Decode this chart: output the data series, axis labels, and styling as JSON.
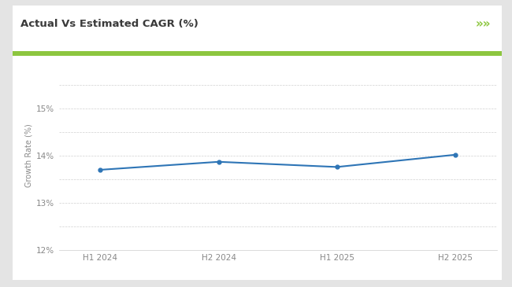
{
  "title": "Actual Vs Estimated CAGR (%)",
  "ylabel": "Growth Rate (%)",
  "x_labels": [
    "H1 2024",
    "H2 2024",
    "H1 2025",
    "H2 2025"
  ],
  "x_values": [
    0,
    1,
    2,
    3
  ],
  "y_values": [
    13.7,
    13.87,
    13.76,
    14.02
  ],
  "line_color": "#2e75b6",
  "line_width": 1.5,
  "ylim": [
    12.0,
    16.0
  ],
  "yticks": [
    12.0,
    12.5,
    13.0,
    13.5,
    14.0,
    14.5,
    15.0,
    15.5
  ],
  "ytick_labels": [
    "12%",
    "",
    "13%",
    "",
    "14%",
    "",
    "15%",
    ""
  ],
  "background_color": "#ffffff",
  "outer_bg": "#e4e4e4",
  "header_bar_color": "#8dc63f",
  "title_color": "#3a3a3a",
  "title_fontsize": 9.5,
  "axis_label_color": "#888888",
  "axis_tick_color": "#888888",
  "grid_color": "#cccccc",
  "marker_size": 3.5,
  "marker_color": "#2e75b6",
  "chevron_color": "#8dc63f",
  "chevron_text": "»»",
  "ylabel_fontsize": 7,
  "ytick_fontsize": 7.5,
  "xtick_fontsize": 7.5
}
